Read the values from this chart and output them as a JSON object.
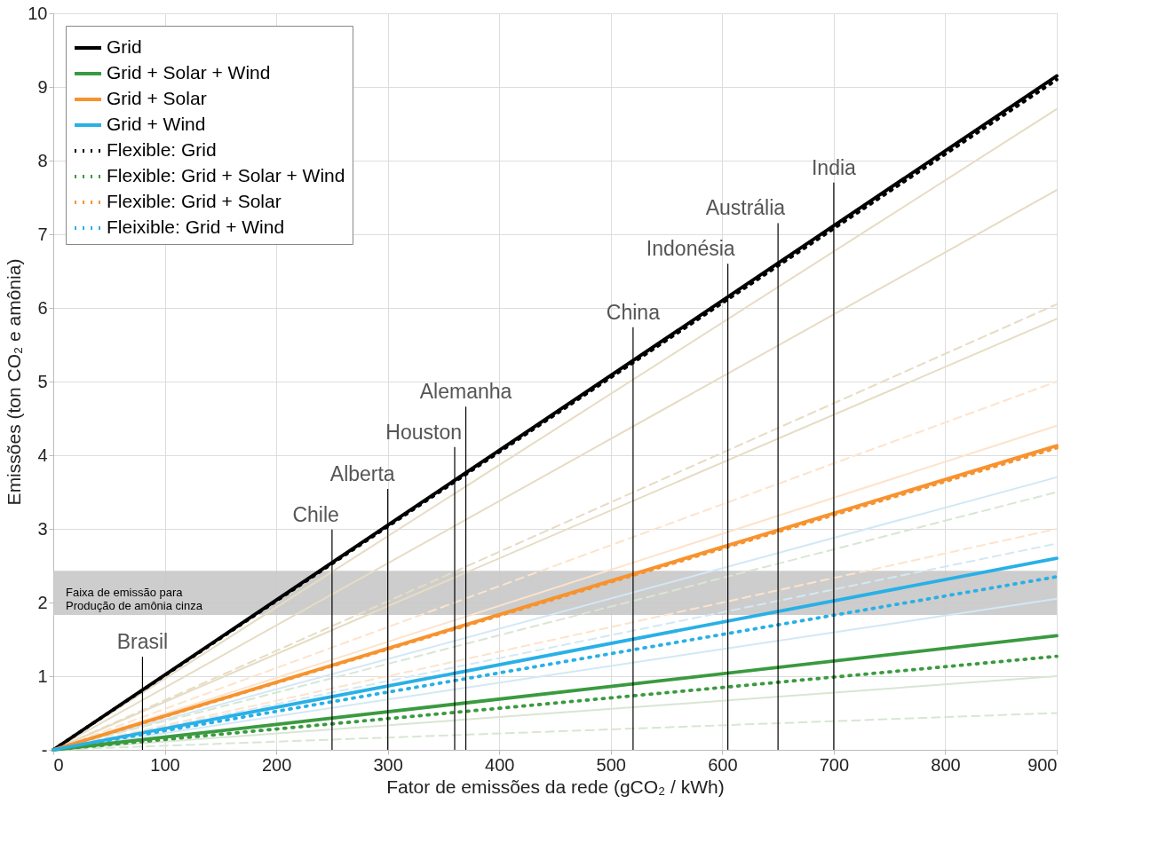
{
  "chart_data": {
    "type": "line",
    "xlabel": "Fator de emissões da rede (gCO₂ / kWh)",
    "ylabel": "Emissões (ton CO₂ e amônia)",
    "x": [
      0,
      900
    ],
    "xlim": [
      0,
      900
    ],
    "ylim": [
      0,
      10
    ],
    "xticks": [
      0,
      100,
      200,
      300,
      400,
      500,
      600,
      700,
      800,
      900
    ],
    "yticks": [
      {
        "value": 0,
        "label": "-"
      },
      1,
      2,
      3,
      4,
      5,
      6,
      7,
      8,
      9,
      10
    ],
    "grid": true,
    "legend": "top left",
    "marker": "none",
    "series": [
      {
        "color": "#e6dcc3",
        "line_style": "solid",
        "values": [
          0,
          8.7
        ]
      },
      {
        "color": "#e6dcc3",
        "line_style": "solid",
        "values": [
          0,
          7.6
        ]
      },
      {
        "color": "#e6dcc3",
        "line_style": "dashed",
        "values": [
          0,
          6.05
        ]
      },
      {
        "color": "#e6dcc3",
        "line_style": "solid",
        "values": [
          0,
          5.85
        ]
      },
      {
        "color": "#fde3cc",
        "line_style": "dashed",
        "values": [
          0,
          5.0
        ]
      },
      {
        "color": "#fde3cc",
        "line_style": "solid",
        "values": [
          0,
          4.4
        ]
      },
      {
        "color": "#fde3cc",
        "line_style": "dashed",
        "values": [
          0,
          3.0
        ]
      },
      {
        "color": "#d2e8f5",
        "line_style": "solid",
        "values": [
          0,
          3.7
        ]
      },
      {
        "color": "#d2e8f5",
        "line_style": "dashed",
        "values": [
          0,
          2.8
        ]
      },
      {
        "color": "#d2e8f5",
        "line_style": "solid",
        "values": [
          0,
          2.05
        ]
      },
      {
        "color": "#d8e6d3",
        "line_style": "dashed",
        "values": [
          0,
          3.5
        ]
      },
      {
        "color": "#d8e6d3",
        "line_style": "solid",
        "values": [
          0,
          1.0
        ]
      },
      {
        "color": "#d8e6d3",
        "line_style": "dashed",
        "values": [
          0,
          0.5
        ]
      },
      {
        "name": "Flexible: Grid",
        "color": "#000000",
        "line_style": "dotted",
        "values": [
          0,
          9.1
        ]
      },
      {
        "name": "Flexible: Grid + Solar + Wind",
        "color": "#3a9a3f",
        "line_style": "dotted",
        "values": [
          0,
          1.27
        ]
      },
      {
        "name": "Flexible: Grid + Solar",
        "color": "#f7932f",
        "line_style": "dotted",
        "values": [
          0,
          4.1
        ]
      },
      {
        "name": "Fleixible: Grid + Wind",
        "color": "#29b0e6",
        "line_style": "dotted",
        "values": [
          0,
          2.35
        ]
      },
      {
        "name": "Grid",
        "color": "#000000",
        "line_style": "solid",
        "values": [
          0,
          9.15
        ]
      },
      {
        "name": "Grid + Solar + Wind",
        "color": "#3a9a3f",
        "line_style": "solid",
        "values": [
          0,
          1.55
        ]
      },
      {
        "name": "Grid + Solar",
        "color": "#f7932f",
        "line_style": "solid",
        "values": [
          0,
          4.13
        ]
      },
      {
        "name": "Grid + Wind",
        "color": "#29b0e6",
        "line_style": "solid",
        "values": [
          0,
          2.6
        ]
      }
    ],
    "bands": [
      {
        "axis": "y",
        "from": 1.83,
        "to": 2.43,
        "label": "Faixa de emissão para\nProdução de amônia cinza",
        "color": "#c8c8c8"
      }
    ],
    "ref_lines": [
      {
        "axis": "x",
        "value": 80,
        "label": "Brasil",
        "color": "#000000"
      },
      {
        "axis": "x",
        "value": 250,
        "label": "Chile",
        "color": "#000000"
      },
      {
        "axis": "x",
        "value": 300,
        "label": "Alberta",
        "color": "#000000"
      },
      {
        "axis": "x",
        "value": 360,
        "label": "Houston",
        "color": "#000000"
      },
      {
        "axis": "x",
        "value": 370,
        "label": "Alemanha",
        "color": "#000000"
      },
      {
        "axis": "x",
        "value": 520,
        "label": "China",
        "color": "#000000"
      },
      {
        "axis": "x",
        "value": 605,
        "label": "Indonésia",
        "color": "#000000"
      },
      {
        "axis": "x",
        "value": 650,
        "label": "Austrália",
        "color": "#000000"
      },
      {
        "axis": "x",
        "value": 700,
        "label": "India",
        "color": "#000000"
      }
    ]
  }
}
